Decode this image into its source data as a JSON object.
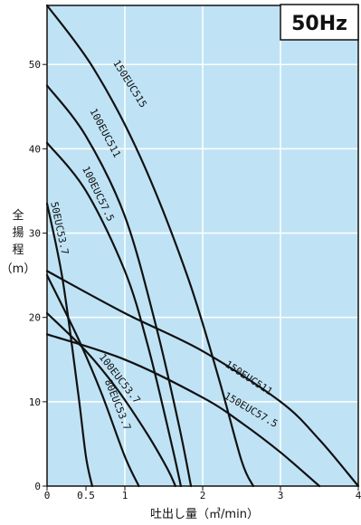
{
  "chart_data": {
    "type": "line",
    "title": "50Hz",
    "xlabel": "吐出し量（㎥/min）",
    "ylabel": "全揚程（m）",
    "ylabel_chars": [
      "全",
      "揚",
      "程"
    ],
    "ylabel_unit": "（m）",
    "xlim": [
      0,
      4
    ],
    "ylim": [
      0,
      57
    ],
    "x_ticks": [
      {
        "value": 0,
        "label": "0"
      },
      {
        "value": 0.5,
        "label": "0.5"
      },
      {
        "value": 1,
        "label": "1"
      },
      {
        "value": 2,
        "label": "2"
      },
      {
        "value": 3,
        "label": "3"
      },
      {
        "value": 4,
        "label": "4"
      }
    ],
    "y_ticks": [
      {
        "value": 0,
        "label": "0"
      },
      {
        "value": 10,
        "label": "10"
      },
      {
        "value": 20,
        "label": "20"
      },
      {
        "value": 30,
        "label": "30"
      },
      {
        "value": 40,
        "label": "40"
      },
      {
        "value": 50,
        "label": "50"
      }
    ],
    "grid": true,
    "colors": {
      "background": "#bfe3f5",
      "grid": "#ffffff",
      "curve": "#111111",
      "badge": "#ffffff"
    },
    "series": [
      {
        "name": "150EUC515",
        "x": [
          0,
          0.6,
          1.2,
          1.8,
          2.2,
          2.5,
          2.65
        ],
        "y": [
          57,
          49.5,
          39,
          25,
          13,
          3,
          0
        ],
        "label_at": [
          1.03,
          47.5
        ],
        "label_angle": 58
      },
      {
        "name": "100EUC511",
        "x": [
          0,
          0.5,
          1,
          1.4,
          1.7,
          1.85
        ],
        "y": [
          47.5,
          41.5,
          32,
          19,
          7,
          0
        ],
        "label_at": [
          0.71,
          41.7
        ],
        "label_angle": 62
      },
      {
        "name": "100EUC57.5",
        "x": [
          0,
          0.5,
          1,
          1.3,
          1.6,
          1.72
        ],
        "y": [
          40.7,
          35,
          25.5,
          16.5,
          5,
          0
        ],
        "label_at": [
          0.62,
          34.5
        ],
        "label_angle": 64
      },
      {
        "name": "50EUC53.7",
        "x": [
          0,
          0.2,
          0.4,
          0.5,
          0.58
        ],
        "y": [
          33.5,
          24.5,
          11,
          3.5,
          0
        ],
        "label_at": [
          0.12,
          30.5
        ],
        "label_angle": 78
      },
      {
        "name": "100EUC53.7",
        "x": [
          0,
          0.5,
          0.9,
          1.3,
          1.55,
          1.65
        ],
        "y": [
          20.5,
          16,
          11.5,
          6,
          2,
          0
        ],
        "label_at": [
          0.9,
          12.5
        ],
        "label_angle": 52
      },
      {
        "name": "80EUC53.7",
        "x": [
          0,
          0.4,
          0.7,
          1,
          1.18
        ],
        "y": [
          25,
          17.5,
          11,
          3.5,
          0
        ],
        "label_at": [
          0.87,
          9.5
        ],
        "label_angle": 68
      },
      {
        "name": "150EUC511",
        "x": [
          0,
          1,
          2,
          3,
          3.5,
          4
        ],
        "y": [
          25.5,
          20.5,
          16,
          10,
          5.5,
          0
        ],
        "label_at": [
          2.57,
          12.5
        ],
        "label_angle": 33
      },
      {
        "name": "150EUC57.5",
        "x": [
          0,
          1,
          2,
          2.5,
          3,
          3.5
        ],
        "y": [
          18,
          15,
          10.5,
          7.5,
          4,
          0
        ],
        "label_at": [
          2.6,
          8.7
        ],
        "label_angle": 30
      }
    ]
  }
}
